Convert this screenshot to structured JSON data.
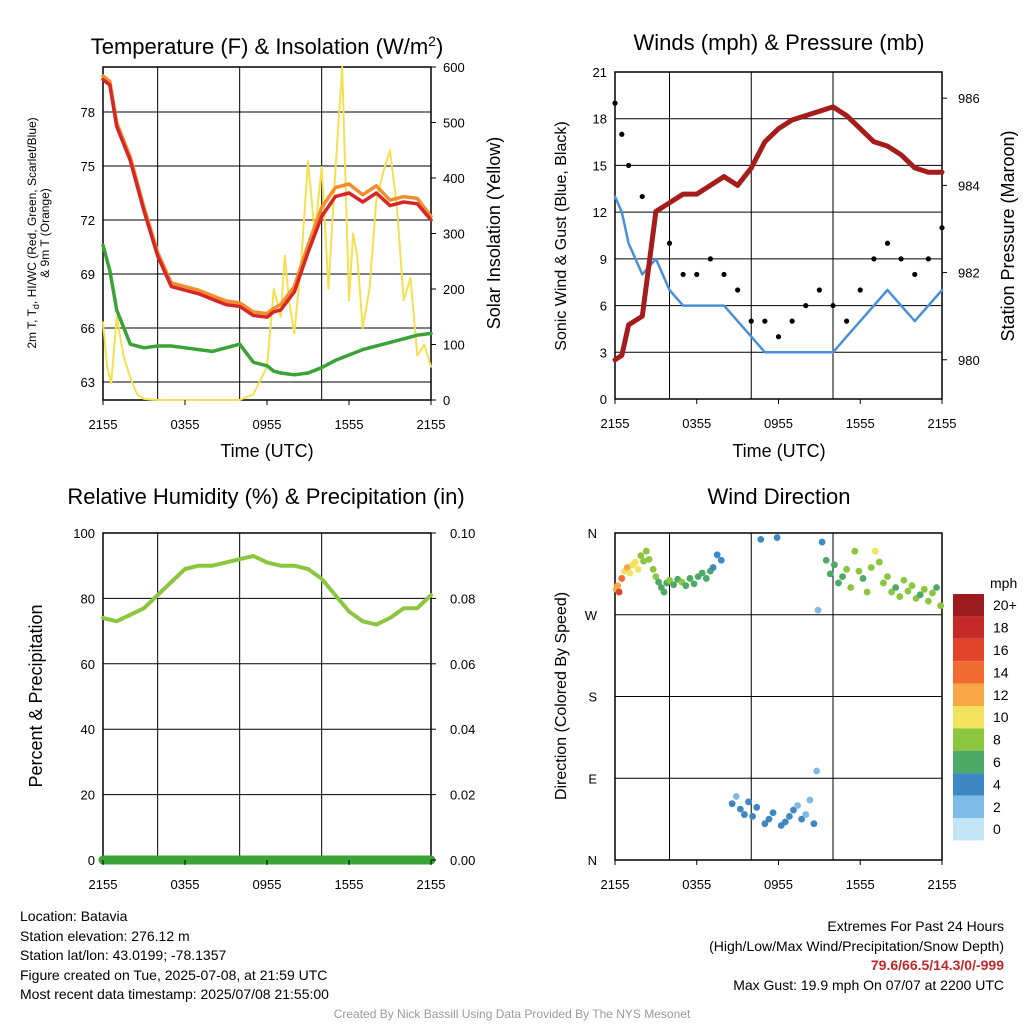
{
  "chart_data": [
    {
      "type": "line",
      "title": "Temperature (F) & Insolation (W/m²)",
      "xlabel": "Time (UTC)",
      "ylabel": "2m T, T_d, HI/WC (Red, Green, Scarlet/Blue) & 9m T (Orange)",
      "ylabel2": "Solar Insolation (Yellow)",
      "x_ticks": [
        "2155",
        "0355",
        "0955",
        "1555",
        "2155"
      ],
      "ylim": [
        62,
        80.5
      ],
      "y_ticks": [
        63,
        66,
        69,
        72,
        75,
        78
      ],
      "ylim2": [
        0,
        600
      ],
      "y2_ticks": [
        0,
        100,
        200,
        300,
        400,
        500,
        600
      ],
      "x_hours": [
        0,
        0.5,
        1,
        2,
        3,
        4,
        5,
        6,
        7,
        8,
        9,
        10,
        11,
        12,
        12.5,
        13,
        14,
        15,
        16,
        17,
        18,
        19,
        20,
        21,
        22,
        23,
        24
      ],
      "series": [
        {
          "color": "#d62728",
          "values": [
            79.8,
            79.5,
            77.2,
            75.3,
            72.5,
            70.0,
            68.3,
            68.1,
            67.9,
            67.6,
            67.3,
            67.2,
            66.7,
            66.6,
            66.9,
            67.0,
            68.0,
            70.2,
            72.2,
            73.3,
            73.5,
            73.0,
            73.5,
            72.8,
            73.0,
            72.9,
            72.0
          ]
        },
        {
          "color": "#f28e2b",
          "values": [
            80.0,
            79.7,
            77.4,
            75.5,
            72.7,
            70.2,
            68.5,
            68.3,
            68.1,
            67.8,
            67.5,
            67.4,
            66.9,
            66.8,
            67.1,
            67.3,
            68.3,
            70.6,
            72.7,
            73.8,
            74.0,
            73.4,
            73.9,
            73.1,
            73.3,
            73.2,
            72.2
          ]
        },
        {
          "color": "#3aa335",
          "values": [
            70.6,
            69.2,
            67.0,
            65.1,
            64.9,
            65.0,
            65.0,
            64.9,
            64.8,
            64.7,
            64.9,
            65.1,
            64.1,
            63.9,
            63.6,
            63.5,
            63.4,
            63.5,
            63.8,
            64.2,
            64.5,
            64.8,
            65.0,
            65.2,
            65.4,
            65.6,
            65.7
          ]
        }
      ],
      "insolation": {
        "color": "#f5e050",
        "x_hours": [
          0,
          0.3,
          0.6,
          1.0,
          1.5,
          2.0,
          2.5,
          3.0,
          4,
          6,
          8,
          10,
          11,
          12,
          12.5,
          13,
          13.3,
          13.6,
          14,
          14.5,
          15,
          15.5,
          16,
          16.5,
          17,
          17.5,
          18,
          18.3,
          18.6,
          19,
          19.5,
          20,
          20.5,
          21,
          21.5,
          22,
          22.5,
          23,
          23.5,
          24
        ],
        "values": [
          140,
          60,
          30,
          150,
          80,
          40,
          10,
          2,
          0,
          0,
          0,
          0,
          10,
          60,
          200,
          150,
          260,
          180,
          120,
          250,
          430,
          300,
          420,
          200,
          410,
          600,
          180,
          300,
          260,
          130,
          200,
          360,
          410,
          450,
          350,
          180,
          220,
          80,
          100,
          60
        ]
      }
    },
    {
      "type": "line",
      "title": "Winds (mph) & Pressure (mb)",
      "xlabel": "Time (UTC)",
      "ylabel": "Sonic Wind & Gust (Blue, Black)",
      "ylabel2": "Station Pressure (Maroon)",
      "x_ticks": [
        "2155",
        "0355",
        "0955",
        "1555",
        "2155"
      ],
      "ylim": [
        0,
        21
      ],
      "y_ticks": [
        0,
        3,
        6,
        9,
        12,
        15,
        18,
        21
      ],
      "ylim2": [
        979.1,
        986.6
      ],
      "y2_ticks": [
        980,
        982,
        984,
        986
      ],
      "x_hours": [
        0,
        0.5,
        1,
        2,
        3,
        4,
        5,
        6,
        7,
        8,
        9,
        10,
        11,
        12,
        13,
        14,
        15,
        16,
        17,
        18,
        19,
        20,
        21,
        22,
        23,
        24
      ],
      "series": [
        {
          "color": "#4a90d9",
          "values": [
            13,
            12,
            10,
            8,
            9,
            7,
            6,
            6,
            6,
            6,
            5,
            4,
            3,
            3,
            3,
            3,
            3,
            3,
            4,
            5,
            6,
            7,
            6,
            5,
            6,
            7
          ]
        },
        {
          "color": "#000000",
          "values": [
            19,
            17,
            15,
            13,
            12,
            10,
            8,
            8,
            9,
            8,
            7,
            5,
            5,
            4,
            5,
            6,
            7,
            6,
            5,
            7,
            9,
            10,
            9,
            8,
            9,
            11
          ]
        },
        {
          "color": "#a51c1c",
          "axis": "right",
          "values": [
            980.0,
            980.1,
            980.8,
            981.0,
            983.4,
            983.6,
            983.8,
            983.8,
            984.0,
            984.2,
            984.0,
            984.4,
            985.0,
            985.3,
            985.5,
            985.6,
            985.7,
            985.8,
            985.6,
            985.3,
            985.0,
            984.9,
            984.7,
            984.4,
            984.3,
            984.3
          ]
        }
      ]
    },
    {
      "type": "line",
      "title": "Relative Humidity (%) & Precipitation (in)",
      "ylabel": "Percent & Precipitation",
      "x_ticks": [
        "2155",
        "0355",
        "0955",
        "1555",
        "2155"
      ],
      "ylim": [
        0,
        100
      ],
      "y_ticks": [
        0,
        20,
        40,
        60,
        80,
        100
      ],
      "ylim2": [
        0,
        0.1
      ],
      "y2_ticks": [
        "0.00",
        "0.02",
        "0.04",
        "0.06",
        "0.08",
        "0.10"
      ],
      "x_hours": [
        0,
        1,
        2,
        3,
        4,
        5,
        6,
        7,
        8,
        9,
        10,
        11,
        12,
        13,
        14,
        15,
        16,
        17,
        18,
        19,
        20,
        21,
        22,
        23,
        24
      ],
      "series": [
        {
          "color": "#8cc63f",
          "values": [
            74,
            73,
            75,
            77,
            81,
            85,
            89,
            90,
            90,
            91,
            92,
            93,
            91,
            90,
            90,
            89,
            86,
            81,
            76,
            73,
            72,
            74,
            77,
            77,
            81
          ]
        },
        {
          "color": "#3aa335",
          "axis": "right",
          "values": [
            0,
            0,
            0,
            0,
            0,
            0,
            0,
            0,
            0,
            0,
            0,
            0,
            0,
            0,
            0,
            0,
            0,
            0,
            0,
            0,
            0,
            0,
            0,
            0,
            0
          ]
        }
      ]
    },
    {
      "type": "scatter",
      "title": "Wind Direction",
      "ylabel": "Direction (Colored By Speed)",
      "x_ticks": [
        "2155",
        "0355",
        "0955",
        "1555",
        "2155"
      ],
      "y_ticks": [
        "N",
        "E",
        "S",
        "W",
        "N"
      ],
      "ylim": [
        0,
        360
      ],
      "colorbar": {
        "title": "mph",
        "labels": [
          "20+",
          "18",
          "16",
          "14",
          "12",
          "10",
          "8",
          "6",
          "4",
          "2",
          "0"
        ],
        "colors": [
          "#9b1b1e",
          "#c62a28",
          "#e2442a",
          "#f26b30",
          "#f9a646",
          "#f2e25c",
          "#8cc63f",
          "#4daa66",
          "#3d87c4",
          "#7ebbe6",
          "#c1e4f7"
        ]
      },
      "points": [
        {
          "x": 0.1,
          "dir": 298,
          "spd": 11
        },
        {
          "x": 0.2,
          "dir": 302,
          "spd": 12
        },
        {
          "x": 0.3,
          "dir": 295,
          "spd": 15
        },
        {
          "x": 0.5,
          "dir": 310,
          "spd": 13
        },
        {
          "x": 0.7,
          "dir": 318,
          "spd": 10
        },
        {
          "x": 0.9,
          "dir": 322,
          "spd": 11
        },
        {
          "x": 1.1,
          "dir": 316,
          "spd": 10
        },
        {
          "x": 1.3,
          "dir": 325,
          "spd": 9
        },
        {
          "x": 1.5,
          "dir": 328,
          "spd": 10
        },
        {
          "x": 1.7,
          "dir": 320,
          "spd": 9
        },
        {
          "x": 1.9,
          "dir": 335,
          "spd": 8
        },
        {
          "x": 2.1,
          "dir": 329,
          "spd": 8
        },
        {
          "x": 2.3,
          "dir": 340,
          "spd": 7
        },
        {
          "x": 2.5,
          "dir": 331,
          "spd": 8
        },
        {
          "x": 2.8,
          "dir": 320,
          "spd": 8
        },
        {
          "x": 3.0,
          "dir": 312,
          "spd": 7
        },
        {
          "x": 3.2,
          "dir": 306,
          "spd": 6
        },
        {
          "x": 3.4,
          "dir": 300,
          "spd": 5
        },
        {
          "x": 3.6,
          "dir": 295,
          "spd": 6
        },
        {
          "x": 3.8,
          "dir": 305,
          "spd": 6
        },
        {
          "x": 4.0,
          "dir": 308,
          "spd": 7
        },
        {
          "x": 4.3,
          "dir": 303,
          "spd": 6
        },
        {
          "x": 4.6,
          "dir": 309,
          "spd": 6
        },
        {
          "x": 4.9,
          "dir": 306,
          "spd": 7
        },
        {
          "x": 5.2,
          "dir": 302,
          "spd": 6
        },
        {
          "x": 5.5,
          "dir": 310,
          "spd": 6
        },
        {
          "x": 5.8,
          "dir": 304,
          "spd": 6
        },
        {
          "x": 6.1,
          "dir": 312,
          "spd": 6
        },
        {
          "x": 6.4,
          "dir": 316,
          "spd": 6
        },
        {
          "x": 6.7,
          "dir": 310,
          "spd": 5
        },
        {
          "x": 7.0,
          "dir": 318,
          "spd": 5
        },
        {
          "x": 7.2,
          "dir": 322,
          "spd": 4
        },
        {
          "x": 7.5,
          "dir": 336,
          "spd": 3
        },
        {
          "x": 7.8,
          "dir": 330,
          "spd": 3
        },
        {
          "x": 8.6,
          "dir": 62,
          "spd": 3
        },
        {
          "x": 8.9,
          "dir": 70,
          "spd": 2
        },
        {
          "x": 9.2,
          "dir": 56,
          "spd": 4
        },
        {
          "x": 9.5,
          "dir": 50,
          "spd": 3
        },
        {
          "x": 9.8,
          "dir": 64,
          "spd": 4
        },
        {
          "x": 10.1,
          "dir": 48,
          "spd": 3
        },
        {
          "x": 10.4,
          "dir": 58,
          "spd": 4
        },
        {
          "x": 10.7,
          "dir": 353,
          "spd": 3
        },
        {
          "x": 11.0,
          "dir": 40,
          "spd": 3
        },
        {
          "x": 11.3,
          "dir": 45,
          "spd": 4
        },
        {
          "x": 11.6,
          "dir": 52,
          "spd": 3
        },
        {
          "x": 11.9,
          "dir": 355,
          "spd": 4
        },
        {
          "x": 12.2,
          "dir": 38,
          "spd": 3
        },
        {
          "x": 12.5,
          "dir": 42,
          "spd": 3
        },
        {
          "x": 12.8,
          "dir": 48,
          "spd": 4
        },
        {
          "x": 13.1,
          "dir": 55,
          "spd": 3
        },
        {
          "x": 13.4,
          "dir": 60,
          "spd": 2
        },
        {
          "x": 13.7,
          "dir": 45,
          "spd": 3
        },
        {
          "x": 14.0,
          "dir": 50,
          "spd": 2
        },
        {
          "x": 14.3,
          "dir": 66,
          "spd": 2
        },
        {
          "x": 14.6,
          "dir": 40,
          "spd": 3
        },
        {
          "x": 14.8,
          "dir": 98,
          "spd": 2
        },
        {
          "x": 14.9,
          "dir": 275,
          "spd": 2
        },
        {
          "x": 15.2,
          "dir": 350,
          "spd": 4
        },
        {
          "x": 15.5,
          "dir": 330,
          "spd": 5
        },
        {
          "x": 15.8,
          "dir": 315,
          "spd": 6
        },
        {
          "x": 16.1,
          "dir": 325,
          "spd": 5
        },
        {
          "x": 16.4,
          "dir": 305,
          "spd": 6
        },
        {
          "x": 16.7,
          "dir": 312,
          "spd": 6
        },
        {
          "x": 17.0,
          "dir": 320,
          "spd": 7
        },
        {
          "x": 17.3,
          "dir": 300,
          "spd": 7
        },
        {
          "x": 17.6,
          "dir": 340,
          "spd": 8
        },
        {
          "x": 17.9,
          "dir": 318,
          "spd": 8
        },
        {
          "x": 18.2,
          "dir": 310,
          "spd": 6
        },
        {
          "x": 18.5,
          "dir": 295,
          "spd": 7
        },
        {
          "x": 18.8,
          "dir": 322,
          "spd": 8
        },
        {
          "x": 19.1,
          "dir": 340,
          "spd": 9
        },
        {
          "x": 19.4,
          "dir": 328,
          "spd": 8
        },
        {
          "x": 19.7,
          "dir": 305,
          "spd": 7
        },
        {
          "x": 20.0,
          "dir": 312,
          "spd": 8
        },
        {
          "x": 20.3,
          "dir": 295,
          "spd": 7
        },
        {
          "x": 20.6,
          "dir": 300,
          "spd": 6
        },
        {
          "x": 20.9,
          "dir": 290,
          "spd": 7
        },
        {
          "x": 21.2,
          "dir": 308,
          "spd": 8
        },
        {
          "x": 21.5,
          "dir": 296,
          "spd": 7
        },
        {
          "x": 21.8,
          "dir": 302,
          "spd": 8
        },
        {
          "x": 22.1,
          "dir": 288,
          "spd": 7
        },
        {
          "x": 22.4,
          "dir": 292,
          "spd": 6
        },
        {
          "x": 22.7,
          "dir": 298,
          "spd": 7
        },
        {
          "x": 23.0,
          "dir": 285,
          "spd": 8
        },
        {
          "x": 23.3,
          "dir": 294,
          "spd": 7
        },
        {
          "x": 23.6,
          "dir": 300,
          "spd": 6
        },
        {
          "x": 23.9,
          "dir": 280,
          "spd": 8
        }
      ]
    }
  ],
  "info": {
    "location": "Location: Batavia",
    "elevation": "Station elevation: 276.12 m",
    "latlon": "Station lat/lon: 43.0199; -78.1357",
    "created": "Figure created on Tue, 2025-07-08, at 21:59 UTC",
    "recent": "Most recent data timestamp: 2025/07/08 21:55:00"
  },
  "extremes": {
    "title": "Extremes For Past 24 Hours",
    "subtitle": "(High/Low/Max Wind/Precipitation/Snow Depth)",
    "values": "79.6/66.5/14.3/0/-999",
    "gust": "Max Gust: 19.9 mph On 07/07 at 2200 UTC"
  },
  "credit": "Created By Nick Bassill Using Data Provided By The NYS Mesonet"
}
